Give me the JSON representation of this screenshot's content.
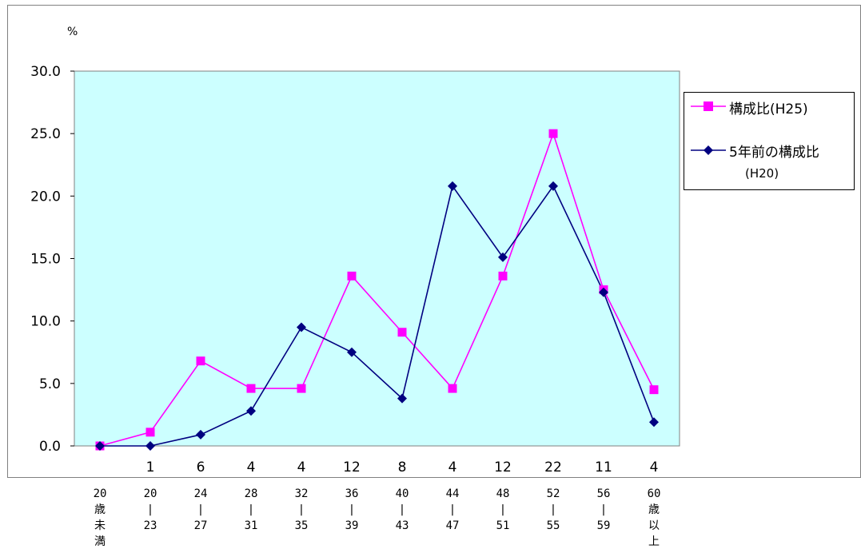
{
  "chart_data": {
    "type": "line",
    "ylabel": "%",
    "ylim": [
      0,
      30
    ],
    "yticks": [
      "0.0",
      "5.0",
      "10.0",
      "15.0",
      "20.0",
      "25.0",
      "30.0"
    ],
    "count_labels": [
      "",
      "1",
      "6",
      "4",
      "4",
      "12",
      "8",
      "4",
      "12",
      "22",
      "11",
      "4"
    ],
    "age_categories": [
      [
        "20",
        "歳",
        "未",
        "満"
      ],
      [
        "20",
        "|",
        "23"
      ],
      [
        "24",
        "|",
        "27"
      ],
      [
        "28",
        "|",
        "31"
      ],
      [
        "32",
        "|",
        "35"
      ],
      [
        "36",
        "|",
        "39"
      ],
      [
        "40",
        "|",
        "43"
      ],
      [
        "44",
        "|",
        "47"
      ],
      [
        "48",
        "|",
        "51"
      ],
      [
        "52",
        "|",
        "55"
      ],
      [
        "56",
        "|",
        "59"
      ],
      [
        "60",
        "歳",
        "以",
        "上"
      ]
    ],
    "series": [
      {
        "name": "構成比(H25)",
        "color": "#ff00ff",
        "marker": "square",
        "values": [
          0.0,
          1.1,
          6.8,
          4.6,
          4.6,
          13.6,
          9.1,
          4.6,
          13.6,
          25.0,
          12.5,
          4.5
        ]
      },
      {
        "name": "5年前の構成比(H20)",
        "color": "#000080",
        "marker": "diamond",
        "values": [
          0.0,
          0.0,
          0.9,
          2.8,
          9.5,
          7.5,
          3.8,
          20.8,
          15.1,
          20.8,
          12.3,
          1.9
        ]
      }
    ],
    "legend": {
      "position": "right",
      "entries": [
        {
          "text": "構成比(H25)"
        },
        {
          "text": "5年前の構成比",
          "subtext": "(H20)"
        }
      ]
    },
    "grid": false,
    "plot_background": "#ccffff"
  }
}
